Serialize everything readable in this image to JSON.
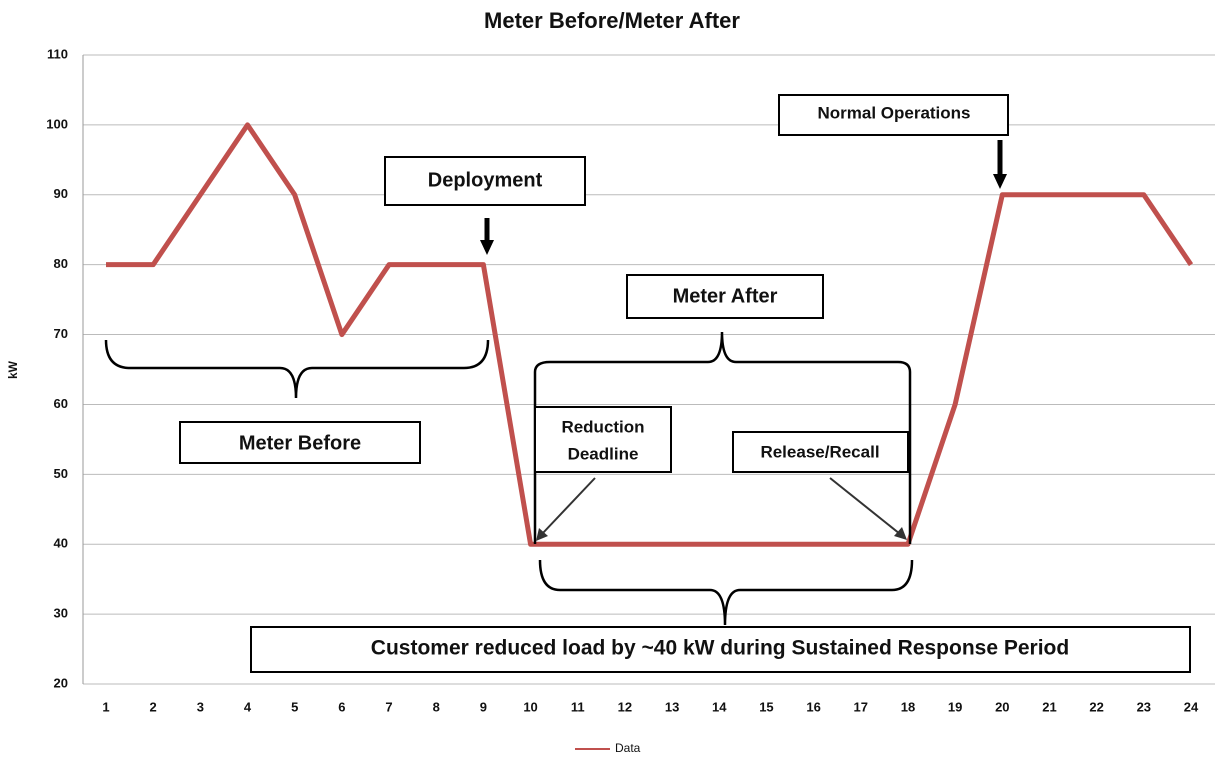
{
  "chart_data": {
    "type": "line",
    "title": "Meter Before/Meter After",
    "y_label": "kW",
    "categories": [
      "1",
      "2",
      "3",
      "4",
      "5",
      "6",
      "7",
      "8",
      "9",
      "10",
      "11",
      "12",
      "13",
      "14",
      "15",
      "16",
      "17",
      "18",
      "19",
      "20",
      "21",
      "22",
      "23",
      "24"
    ],
    "series": [
      {
        "name": "Data",
        "color": "#c0504d",
        "values": [
          80,
          80,
          90,
          100,
          90,
          70,
          80,
          80,
          80,
          40,
          40,
          40,
          40,
          40,
          40,
          40,
          40,
          40,
          60,
          90,
          90,
          90,
          90,
          80
        ]
      }
    ],
    "ylim": [
      20,
      110
    ],
    "yticks": [
      20,
      30,
      40,
      50,
      60,
      70,
      80,
      90,
      100,
      110
    ],
    "grid": true,
    "legend": "bottom",
    "annotations": [
      "Deployment",
      "Meter Before",
      "Meter After",
      "Reduction",
      "Deadline",
      "Release/Recall",
      "Normal Operations",
      "Customer reduced load by ~40 kW during Sustained Response Period"
    ]
  }
}
